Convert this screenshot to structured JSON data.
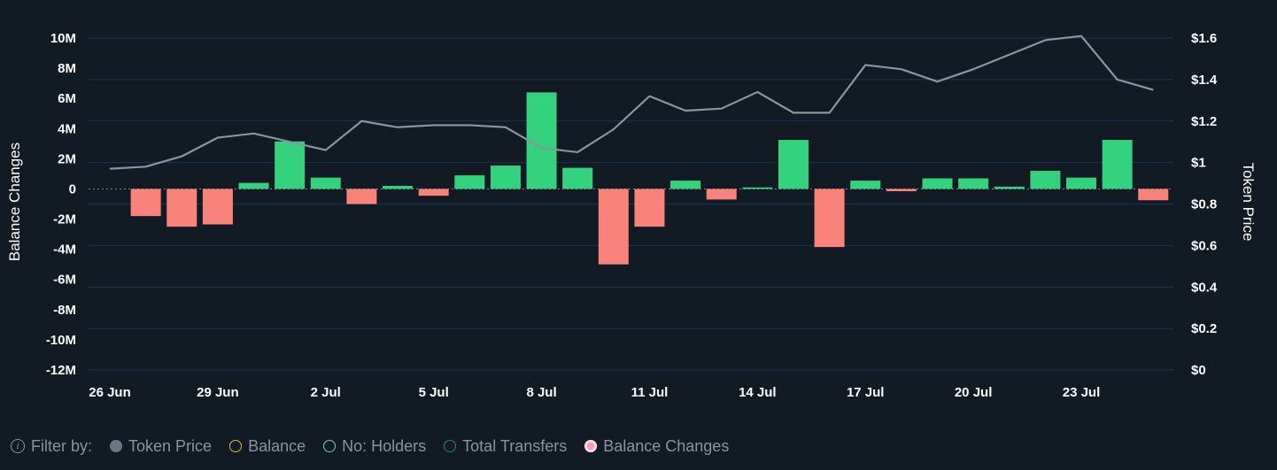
{
  "chart_data": {
    "type": "bar",
    "x": [
      "26 Jun",
      "27 Jun",
      "28 Jun",
      "29 Jun",
      "30 Jun",
      "1 Jul",
      "2 Jul",
      "3 Jul",
      "4 Jul",
      "5 Jul",
      "6 Jul",
      "7 Jul",
      "8 Jul",
      "9 Jul",
      "10 Jul",
      "11 Jul",
      "12 Jul",
      "13 Jul",
      "14 Jul",
      "15 Jul",
      "16 Jul",
      "17 Jul",
      "18 Jul",
      "19 Jul",
      "20 Jul",
      "21 Jul",
      "22 Jul",
      "23 Jul",
      "24 Jul",
      "25 Jul"
    ],
    "series": [
      {
        "name": "Balance Changes",
        "type": "bar",
        "axis": "left",
        "positive_color": "#34d27f",
        "negative_color": "#f9837a",
        "values": [
          null,
          -1800000,
          -2500000,
          -2350000,
          400000,
          3150000,
          750000,
          -1000000,
          200000,
          -450000,
          900000,
          1550000,
          6400000,
          1400000,
          -5000000,
          -2500000,
          550000,
          -700000,
          100000,
          3250000,
          -3850000,
          550000,
          -150000,
          700000,
          700000,
          150000,
          1200000,
          750000,
          3250000,
          -750000
        ]
      },
      {
        "name": "Token Price",
        "type": "line",
        "axis": "right",
        "color": "#8a95a1",
        "values": [
          0.97,
          0.98,
          1.03,
          1.12,
          1.14,
          1.1,
          1.06,
          1.2,
          1.17,
          1.18,
          1.18,
          1.17,
          1.07,
          1.05,
          1.16,
          1.32,
          1.25,
          1.26,
          1.34,
          1.24,
          1.24,
          1.47,
          1.45,
          1.39,
          1.45,
          1.52,
          1.59,
          1.61,
          1.4,
          1.35
        ]
      }
    ],
    "x_ticks": [
      "26 Jun",
      "29 Jun",
      "2 Jul",
      "5 Jul",
      "8 Jul",
      "11 Jul",
      "14 Jul",
      "17 Jul",
      "20 Jul",
      "23 Jul"
    ],
    "y_left": {
      "label": "Balance Changes",
      "ticks": [
        10000000,
        8000000,
        6000000,
        4000000,
        2000000,
        0,
        -2000000,
        -4000000,
        -6000000,
        -8000000,
        -10000000,
        -12000000
      ],
      "tick_labels": [
        "10M",
        "8M",
        "6M",
        "4M",
        "2M",
        "0",
        "-2M",
        "-4M",
        "-6M",
        "-8M",
        "-10M",
        "-12M"
      ],
      "range": [
        -12000000,
        10000000
      ]
    },
    "y_right": {
      "label": "Token Price",
      "ticks": [
        1.6,
        1.4,
        1.2,
        1,
        0.8,
        0.6,
        0.4,
        0.2,
        0
      ],
      "tick_labels": [
        "$1.6",
        "$1.4",
        "$1.2",
        "$1",
        "$0.8",
        "$0.6",
        "$0.4",
        "$0.2",
        "$0"
      ],
      "range": [
        0,
        1.6
      ]
    },
    "grid": true,
    "zero_line": "dashed"
  },
  "legend": {
    "filter_label": "Filter by:",
    "filter_icon": "info-icon",
    "items": [
      {
        "label": "Token Price",
        "color": "#6b7785",
        "style": "filled"
      },
      {
        "label": "Balance",
        "color": "#e6b422",
        "style": "outline"
      },
      {
        "label": "No: Holders",
        "color": "#5fd3c7",
        "style": "outline"
      },
      {
        "label": "Total Transfers",
        "color": "#1f8a6f",
        "style": "outline"
      },
      {
        "label": "Balance Changes",
        "color": "#f79ab2",
        "style": "ring"
      }
    ]
  }
}
